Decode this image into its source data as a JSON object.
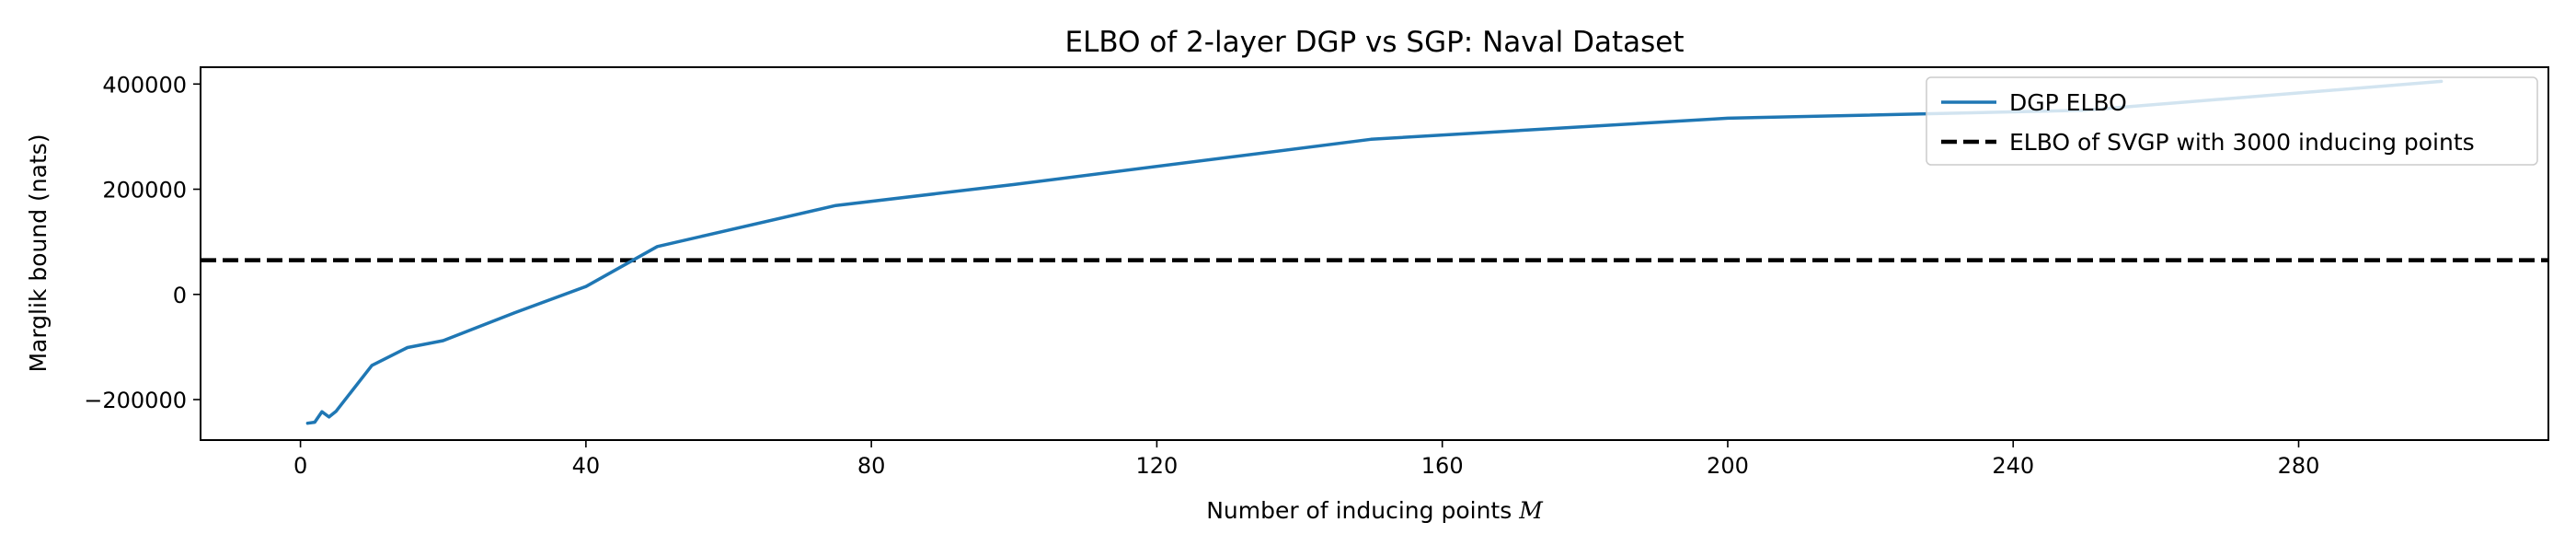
{
  "chart_data": {
    "type": "line",
    "title": "ELBO of 2-layer DGP vs SGP: Naval Dataset",
    "xlabel": "Number of inducing points M",
    "xlabel_main": "Number of inducing points ",
    "xlabel_var": "M",
    "ylabel": "Marglik bound (nats)",
    "xlim": [
      -14,
      315
    ],
    "ylim": [
      -277000,
      432000
    ],
    "xticks": [
      0,
      40,
      80,
      120,
      160,
      200,
      240,
      280
    ],
    "yticks": [
      -200000,
      0,
      200000,
      400000
    ],
    "grid": false,
    "legend_position": "top-right",
    "series": [
      {
        "name": "DGP ELBO",
        "color": "#1f77b4",
        "style": "solid",
        "x": [
          1,
          2,
          3,
          4,
          5,
          10,
          15,
          20,
          30,
          40,
          50,
          75,
          100,
          150,
          200,
          250,
          300
        ],
        "y": [
          -245000,
          -243000,
          -223000,
          -233000,
          -222000,
          -135000,
          -101000,
          -88000,
          -35000,
          15000,
          91000,
          169000,
          209000,
          295000,
          335000,
          350000,
          405000
        ]
      }
    ],
    "reference_lines": [
      {
        "name": "ELBO of SVGP with 3000 inducing points",
        "color": "#000000",
        "style": "dashed",
        "y": 65000
      }
    ]
  }
}
